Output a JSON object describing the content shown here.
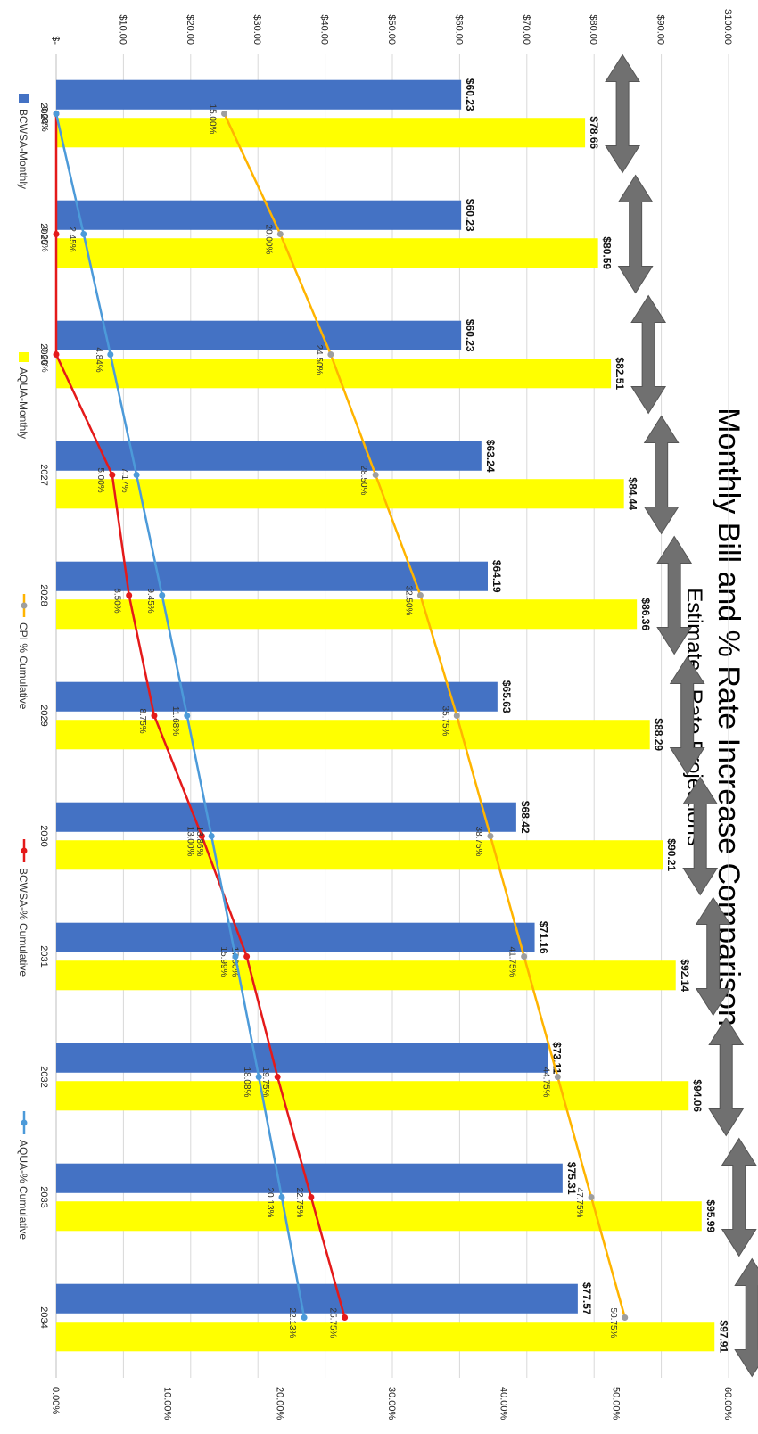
{
  "chart_data": {
    "type": "bar",
    "title": "Monthly Bill and % Rate Increase Comparison",
    "subtitle": "Estimated Rate Projections",
    "categories": [
      "2024",
      "2025",
      "2026",
      "2027",
      "2028",
      "2029",
      "2030",
      "2031",
      "2032",
      "2033",
      "2034"
    ],
    "ylim": [
      0,
      100
    ],
    "y2lim": [
      0,
      60
    ],
    "y_ticks": [
      "$-",
      "$10.00",
      "$20.00",
      "$30.00",
      "$40.00",
      "$50.00",
      "$60.00",
      "$70.00",
      "$80.00",
      "$90.00",
      "$100.00"
    ],
    "y2_ticks": [
      "0.00%",
      "10.00%",
      "20.00%",
      "30.00%",
      "40.00%",
      "50.00%",
      "60.00%"
    ],
    "grid": true,
    "legend_position": "bottom",
    "series": [
      {
        "name": "BCWSA-Monthly",
        "kind": "bar",
        "axis": "left",
        "color": "#4472C4",
        "values": [
          60.23,
          60.23,
          60.23,
          63.24,
          64.19,
          65.63,
          68.42,
          71.16,
          73.11,
          75.31,
          77.57
        ],
        "labels": [
          "$60.23",
          "$60.23",
          "$60.23",
          "$63.24",
          "$64.19",
          "$65.63",
          "$68.42",
          "$71.16",
          "$73.11",
          "$75.31",
          "$77.57"
        ]
      },
      {
        "name": "AQUA-Monthly",
        "kind": "bar",
        "axis": "left",
        "color": "#FFFF00",
        "values": [
          78.66,
          80.59,
          82.51,
          84.44,
          86.36,
          88.29,
          90.21,
          92.14,
          94.06,
          95.99,
          97.91
        ],
        "labels": [
          "$78.66",
          "$80.59",
          "$82.51",
          "$84.44",
          "$86.36",
          "$88.29",
          "$90.21",
          "$92.14",
          "$94.06",
          "$95.99",
          "$97.91"
        ]
      },
      {
        "name": "CPI % Cumulative",
        "kind": "line",
        "axis": "right",
        "color": "#FFB400",
        "values": [
          15.0,
          20.0,
          24.5,
          28.5,
          32.5,
          35.75,
          38.75,
          41.75,
          44.75,
          47.75,
          50.75
        ],
        "labels": [
          "15.00%",
          "20.00%",
          "24.50%",
          "28.50%",
          "32.50%",
          "35.75%",
          "38.75%",
          "41.75%",
          "44.75%",
          "47.75%",
          "50.75%"
        ]
      },
      {
        "name": "BCWSA-% Cumulative",
        "kind": "line",
        "axis": "right",
        "color": "#E41A1A",
        "values": [
          0.0,
          0.0,
          0.0,
          5.0,
          6.5,
          8.75,
          13.0,
          17.0,
          19.75,
          22.75,
          25.75
        ],
        "labels": [
          "0.00%",
          "0.00%",
          "0.00%",
          "5.00%",
          "6.50%",
          "8.75%",
          "13.00%",
          "17.00%",
          "19.75%",
          "22.75%",
          "25.75%"
        ]
      },
      {
        "name": "AQUA-% Cumulative",
        "kind": "line",
        "axis": "right",
        "color": "#4C9AD9",
        "values": [
          0.0,
          2.45,
          4.84,
          7.17,
          9.45,
          11.68,
          13.86,
          15.99,
          18.08,
          20.13,
          22.13
        ],
        "labels": [
          "0.00%",
          "2.45%",
          "4.84%",
          "7.17%",
          "9.45%",
          "11.68%",
          "13.86%",
          "15.99%",
          "18.08%",
          "20.13%",
          "22.13%"
        ]
      }
    ],
    "arrows": {
      "shape": "double-headed-arrow",
      "color": "#707070",
      "count": 11
    }
  }
}
